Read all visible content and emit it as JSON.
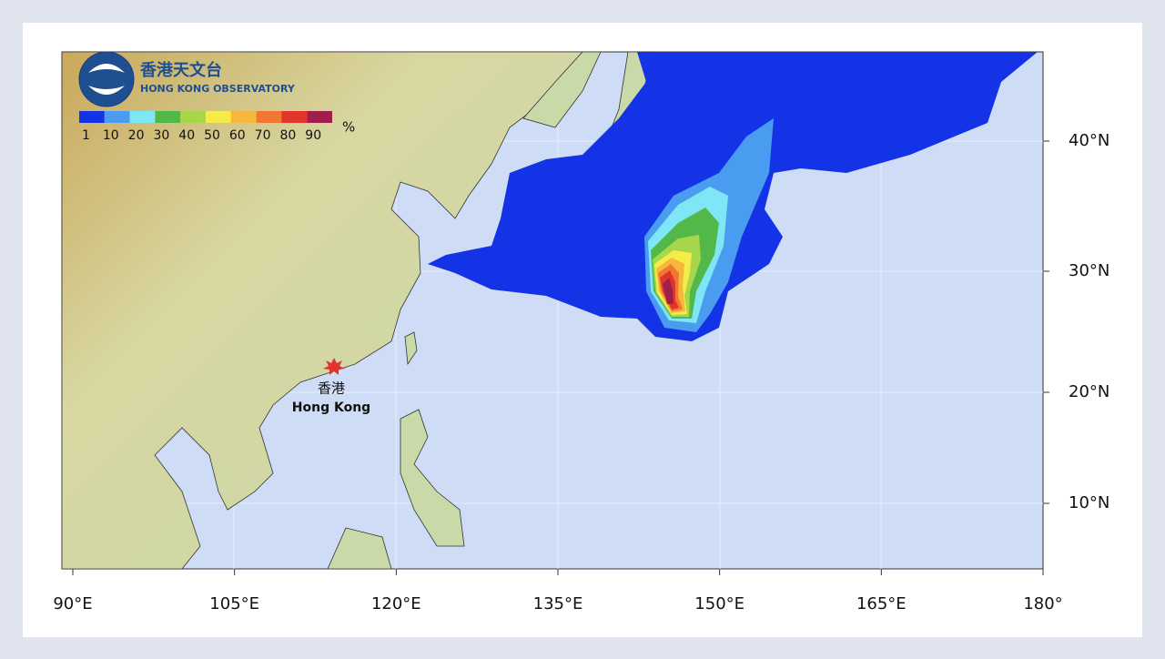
{
  "logo": {
    "name_zh": "香港天文台",
    "name_en": "HONG KONG OBSERVATORY"
  },
  "legend": {
    "labels": [
      "1",
      "10",
      "20",
      "30",
      "40",
      "50",
      "60",
      "70",
      "80",
      "90"
    ],
    "colors": [
      "#1432e6",
      "#4a9cf0",
      "#7fe6f5",
      "#52b848",
      "#a6d64a",
      "#f5ec4a",
      "#f5b83c",
      "#f07830",
      "#e0342c",
      "#a01e4a"
    ],
    "unit": "%"
  },
  "marker": {
    "name_zh": "香港",
    "name_en": "Hong Kong"
  },
  "axes": {
    "x_labels": [
      "90°E",
      "105°E",
      "120°E",
      "135°E",
      "150°E",
      "165°E",
      "180°"
    ],
    "y_labels": [
      "40°N",
      "30°N",
      "20°N",
      "10°N"
    ]
  }
}
